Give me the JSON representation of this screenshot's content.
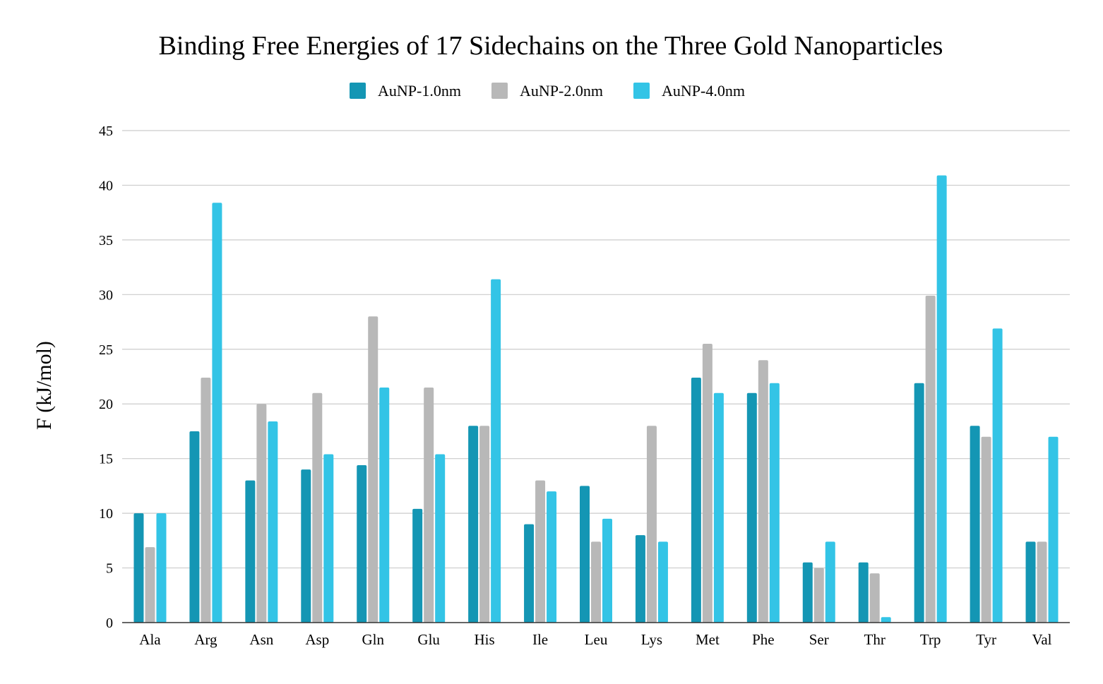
{
  "chart_data": {
    "type": "bar",
    "title": "Binding Free Energies of 17 Sidechains on the Three Gold Nanoparticles",
    "xlabel": "",
    "ylabel": "F (kJ/mol)",
    "ylim": [
      0,
      45
    ],
    "yticks": [
      0,
      5,
      10,
      15,
      20,
      25,
      30,
      35,
      40,
      45
    ],
    "grid": true,
    "legend_position": "top-center",
    "categories": [
      "Ala",
      "Arg",
      "Asn",
      "Asp",
      "Gln",
      "Glu",
      "His",
      "Ile",
      "Leu",
      "Lys",
      "Met",
      "Phe",
      "Ser",
      "Thr",
      "Trp",
      "Tyr",
      "Val"
    ],
    "series": [
      {
        "name": "AuNP-1.0nm",
        "color": "#1496b4",
        "values": [
          10.0,
          17.5,
          13.0,
          14.0,
          14.4,
          10.4,
          18.0,
          9.0,
          12.5,
          8.0,
          22.4,
          21.0,
          5.5,
          5.5,
          21.9,
          18.0,
          7.4
        ]
      },
      {
        "name": "AuNP-2.0nm",
        "color": "#b8b8b8",
        "values": [
          6.9,
          22.4,
          20.0,
          21.0,
          28.0,
          21.5,
          18.0,
          13.0,
          7.4,
          18.0,
          25.5,
          24.0,
          5.0,
          4.5,
          29.9,
          17.0,
          7.4
        ]
      },
      {
        "name": "AuNP-4.0nm",
        "color": "#33c4e6",
        "values": [
          10.0,
          38.4,
          18.4,
          15.4,
          21.5,
          15.4,
          31.4,
          12.0,
          9.5,
          7.4,
          21.0,
          21.9,
          7.4,
          0.5,
          40.9,
          26.9,
          17.0
        ]
      }
    ]
  }
}
